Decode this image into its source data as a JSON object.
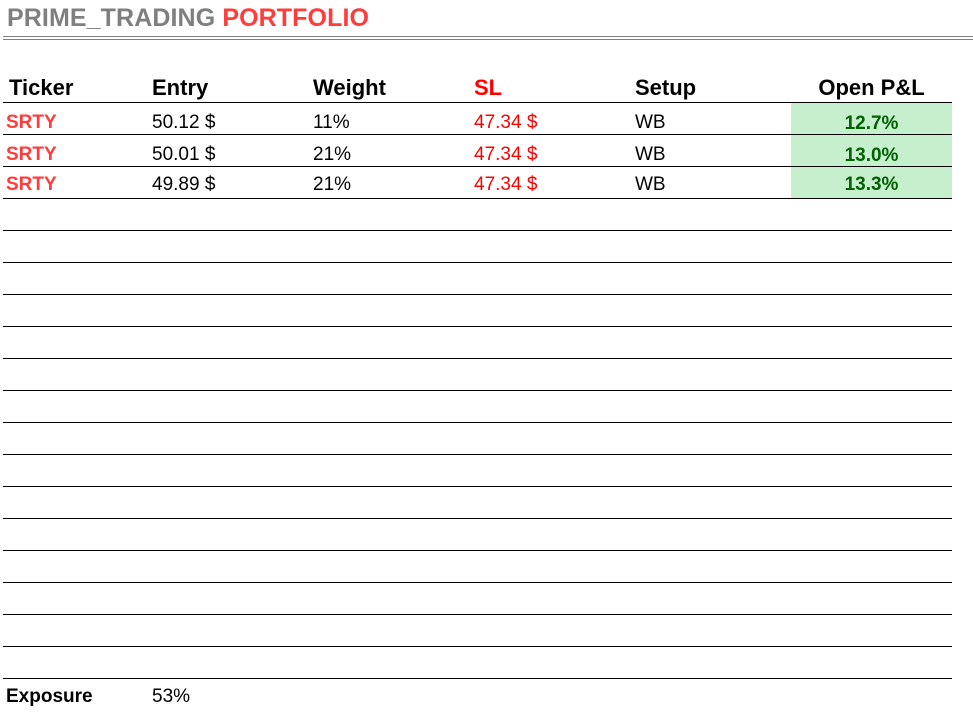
{
  "title": {
    "part1": "PRIME_TRADING ",
    "part2": "PORTFOLIO"
  },
  "columns": {
    "ticker": "Ticker",
    "entry": "Entry",
    "weight": "Weight",
    "sl": "SL",
    "setup": "Setup",
    "open_pnl": "Open P&L"
  },
  "positions": [
    {
      "ticker": "SRTY",
      "entry": "50.12 $",
      "weight": "11%",
      "sl": "47.34 $",
      "setup": "WB",
      "open_pnl": "12.7%"
    },
    {
      "ticker": "SRTY",
      "entry": "50.01 $",
      "weight": "21%",
      "sl": "47.34 $",
      "setup": "WB",
      "open_pnl": "13.0%"
    },
    {
      "ticker": "SRTY",
      "entry": "49.89 $",
      "weight": "21%",
      "sl": "47.34 $",
      "setup": "WB",
      "open_pnl": "13.3%"
    }
  ],
  "footer": {
    "exposure_label": "Exposure",
    "exposure_value": "53%"
  },
  "colors": {
    "title_gray": "#7f7f7f",
    "title_red": "#ff3b3b",
    "stop_loss_red": "#ff0000",
    "pnl_positive_bg": "#c6efce",
    "pnl_positive_text": "#006100"
  }
}
